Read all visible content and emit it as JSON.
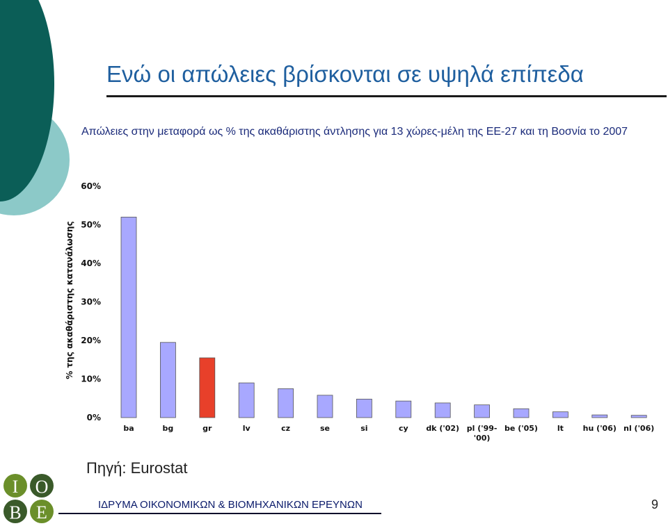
{
  "slide": {
    "title": "Ενώ οι απώλειες βρίσκονται σε υψηλά επίπεδα",
    "subtitle": "Απώλειες στην μεταφορά ως % της ακαθάριστης άντλησης για 13 χώρες-μέλη της ΕΕ-27 και τη Βοσνία το 2007",
    "source": "Πηγή: Eurostat",
    "footer": "ΙΔΡΥΜΑ ΟΙΚΟΝΟΜΙΚΩΝ & ΒΙΟΜΗΧΑΝΙΚΩΝ ΕΡΕΥΝΩΝ",
    "page_number": "9",
    "logo_letters": [
      "Ι",
      "Ο",
      "Β",
      "Ε"
    ]
  },
  "colors": {
    "title": "#1f5f9f",
    "bar": "#a8a8ff",
    "highlight": "#e8402a",
    "deco_dark": "#0b5e57",
    "deco_light": "#8cc9c8"
  },
  "chart_data": {
    "type": "bar",
    "ylabel": "% της ακαθάριστης κατανάλωσης",
    "ylim": [
      0,
      60
    ],
    "yticks": [
      "0%",
      "10%",
      "20%",
      "30%",
      "40%",
      "50%",
      "60%"
    ],
    "categories": [
      "ba",
      "bg",
      "gr",
      "lv",
      "cz",
      "se",
      "si",
      "cy",
      "dk ('02)",
      "pl ('99-'00)",
      "be ('05)",
      "lt",
      "hu ('06)",
      "nl ('06)"
    ],
    "values": [
      52,
      19.5,
      15.5,
      9,
      7.5,
      5.8,
      4.8,
      4.3,
      3.8,
      3.3,
      2.3,
      1.5,
      0.7,
      0.6
    ],
    "highlight": "gr",
    "grid": false,
    "legend": "none"
  }
}
